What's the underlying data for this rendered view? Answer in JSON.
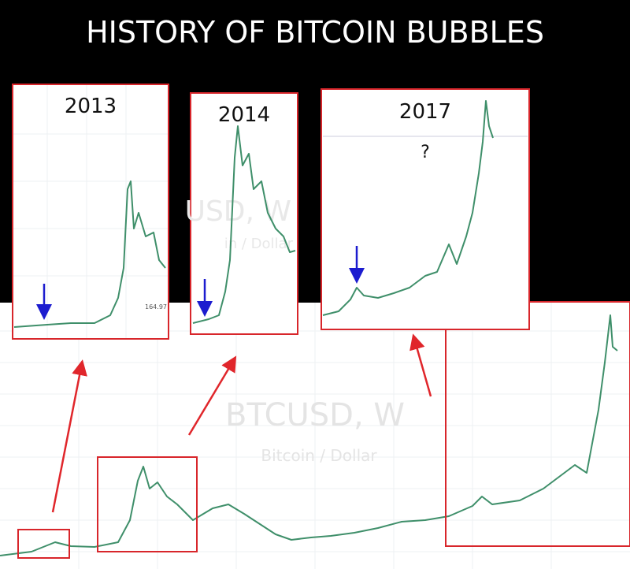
{
  "title": "HISTORY OF BITCOIN BUBBLES",
  "insets": [
    {
      "label": "2013"
    },
    {
      "label": "2014"
    },
    {
      "label": "2017",
      "note": "?"
    }
  ],
  "price_tag": "164.97",
  "inset_watermark": {
    "symbol": "USD, W",
    "name": "in / Dollar"
  },
  "watermark": {
    "symbol": "BTCUSD, W",
    "name": "Bitcoin / Dollar"
  }
}
